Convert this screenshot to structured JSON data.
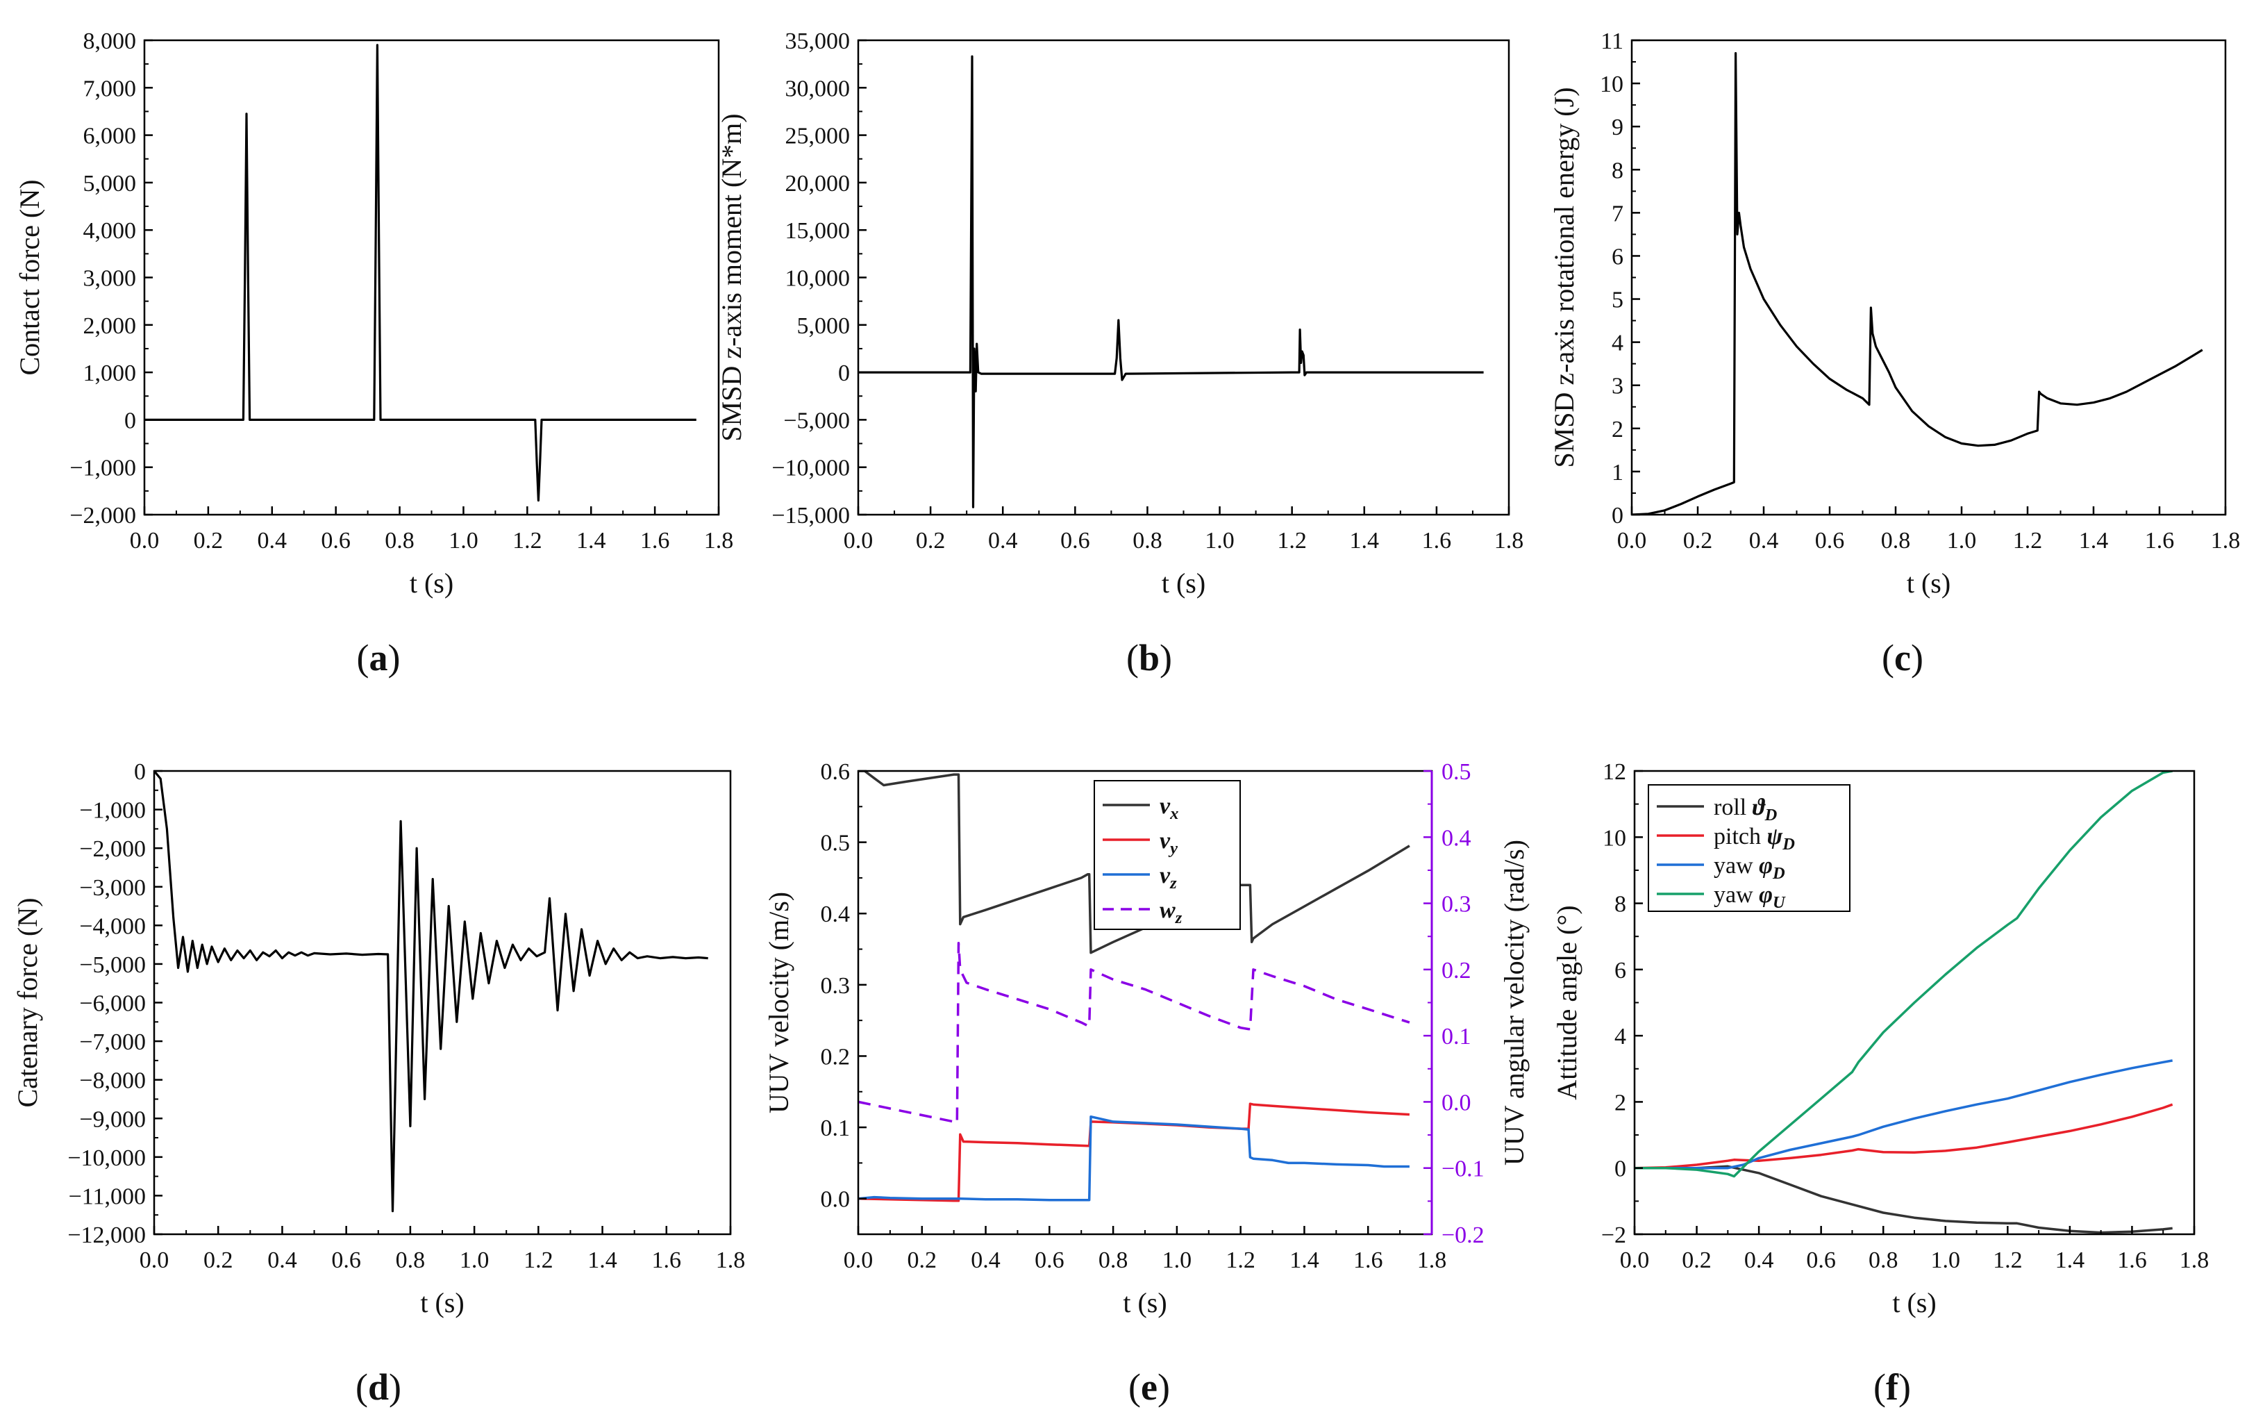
{
  "figure": {
    "panel_labels": [
      "(a)",
      "(b)",
      "(c)",
      "(d)",
      "(e)",
      "(f)"
    ]
  },
  "chart_data": [
    {
      "panel": "(a)",
      "type": "line",
      "xlabel": "t (s)",
      "ylabel": "Contact force (N)",
      "xlim": [
        0.0,
        1.8
      ],
      "ylim": [
        -2000,
        8000
      ],
      "xticks": [
        "0.0",
        "0.2",
        "0.4",
        "0.6",
        "0.8",
        "1.0",
        "1.2",
        "1.4",
        "1.6",
        "1.8"
      ],
      "yticks": [
        "−2,000",
        "−1,000",
        "0",
        "1,000",
        "2,000",
        "3,000",
        "4,000",
        "5,000",
        "6,000",
        "7,000",
        "8,000"
      ],
      "series": [
        {
          "color": "#000000",
          "dashed": false,
          "x": [
            0.0,
            0.31,
            0.315,
            0.32,
            0.325,
            0.33,
            0.72,
            0.725,
            0.73,
            0.735,
            0.74,
            1.225,
            1.23,
            1.235,
            1.24,
            1.245,
            1.73
          ],
          "y": [
            0,
            0,
            3000,
            6450,
            3000,
            0,
            0,
            3800,
            7900,
            3800,
            0,
            0,
            -900,
            -1700,
            -900,
            0,
            0
          ]
        }
      ]
    },
    {
      "panel": "(b)",
      "type": "line",
      "xlabel": "t (s)",
      "ylabel": "SMSD  z-axis moment (N*m)",
      "xlim": [
        0.0,
        1.8
      ],
      "ylim": [
        -15000,
        35000
      ],
      "xticks": [
        "0.0",
        "0.2",
        "0.4",
        "0.6",
        "0.8",
        "1.0",
        "1.2",
        "1.4",
        "1.6",
        "1.8"
      ],
      "yticks": [
        "−15,000",
        "−10,000",
        "−5,000",
        "0",
        "5,000",
        "10,000",
        "15,000",
        "20,000",
        "25,000",
        "30,000",
        "35,000"
      ],
      "series": [
        {
          "color": "#000000",
          "dashed": false,
          "x": [
            0.0,
            0.3,
            0.31,
            0.315,
            0.318,
            0.321,
            0.325,
            0.328,
            0.332,
            0.34,
            0.71,
            0.715,
            0.72,
            0.725,
            0.73,
            0.74,
            1.2,
            1.22,
            1.222,
            1.225,
            1.228,
            1.232,
            1.235,
            1.24,
            1.73
          ],
          "y": [
            0,
            0,
            0,
            33300,
            -14200,
            2500,
            -2000,
            3000,
            0,
            -150,
            -150,
            1500,
            5500,
            1500,
            -800,
            -150,
            0,
            0,
            4500,
            1000,
            2200,
            1800,
            -300,
            0,
            0
          ]
        }
      ]
    },
    {
      "panel": "(c)",
      "type": "line",
      "xlabel": "t (s)",
      "ylabel": "SMSD  z-axis rotational energy (J)",
      "xlim": [
        0.0,
        1.8
      ],
      "ylim": [
        0,
        11
      ],
      "xticks": [
        "0.0",
        "0.2",
        "0.4",
        "0.6",
        "0.8",
        "1.0",
        "1.2",
        "1.4",
        "1.6",
        "1.8"
      ],
      "yticks": [
        "0",
        "1",
        "2",
        "3",
        "4",
        "5",
        "6",
        "7",
        "8",
        "9",
        "10",
        "11"
      ],
      "series": [
        {
          "color": "#000000",
          "dashed": false,
          "x": [
            0.0,
            0.05,
            0.1,
            0.15,
            0.2,
            0.25,
            0.3,
            0.31,
            0.315,
            0.32,
            0.325,
            0.33,
            0.34,
            0.36,
            0.4,
            0.45,
            0.5,
            0.55,
            0.6,
            0.65,
            0.7,
            0.72,
            0.725,
            0.73,
            0.74,
            0.76,
            0.78,
            0.8,
            0.85,
            0.9,
            0.95,
            1.0,
            1.05,
            1.1,
            1.15,
            1.2,
            1.23,
            1.235,
            1.24,
            1.26,
            1.3,
            1.35,
            1.4,
            1.45,
            1.5,
            1.55,
            1.6,
            1.65,
            1.7,
            1.73
          ],
          "y": [
            0,
            0.02,
            0.1,
            0.25,
            0.42,
            0.58,
            0.72,
            0.75,
            10.7,
            6.5,
            7.0,
            6.7,
            6.2,
            5.7,
            5.0,
            4.4,
            3.9,
            3.5,
            3.15,
            2.9,
            2.7,
            2.55,
            4.8,
            4.2,
            3.9,
            3.6,
            3.3,
            2.95,
            2.4,
            2.05,
            1.8,
            1.65,
            1.6,
            1.62,
            1.72,
            1.88,
            1.95,
            2.85,
            2.8,
            2.7,
            2.58,
            2.55,
            2.6,
            2.7,
            2.85,
            3.05,
            3.25,
            3.45,
            3.68,
            3.82
          ]
        }
      ]
    },
    {
      "panel": "(d)",
      "type": "line",
      "xlabel": "t (s)",
      "ylabel": "Catenary force (N)",
      "xlim": [
        0.0,
        1.8
      ],
      "ylim": [
        -12000,
        0
      ],
      "xticks": [
        "0.0",
        "0.2",
        "0.4",
        "0.6",
        "0.8",
        "1.0",
        "1.2",
        "1.4",
        "1.6",
        "1.8"
      ],
      "yticks": [
        "−12,000",
        "−11,000",
        "−10,000",
        "−9,000",
        "−8,000",
        "−7,000",
        "−6,000",
        "−5,000",
        "−4,000",
        "−3,000",
        "−2,000",
        "−1,000",
        "0"
      ],
      "series": [
        {
          "color": "#000000",
          "dashed": false,
          "x": [
            0.0,
            0.02,
            0.04,
            0.06,
            0.075,
            0.09,
            0.105,
            0.12,
            0.135,
            0.15,
            0.165,
            0.18,
            0.2,
            0.22,
            0.24,
            0.26,
            0.28,
            0.3,
            0.32,
            0.34,
            0.36,
            0.38,
            0.4,
            0.42,
            0.44,
            0.46,
            0.48,
            0.5,
            0.55,
            0.6,
            0.65,
            0.7,
            0.73,
            0.745,
            0.77,
            0.8,
            0.82,
            0.845,
            0.87,
            0.895,
            0.92,
            0.945,
            0.97,
            0.995,
            1.02,
            1.045,
            1.07,
            1.095,
            1.12,
            1.145,
            1.17,
            1.195,
            1.22,
            1.235,
            1.26,
            1.285,
            1.31,
            1.335,
            1.36,
            1.385,
            1.41,
            1.435,
            1.46,
            1.485,
            1.51,
            1.54,
            1.58,
            1.62,
            1.66,
            1.7,
            1.73
          ],
          "y": [
            0,
            -200,
            -1500,
            -3800,
            -5100,
            -4300,
            -5200,
            -4400,
            -5100,
            -4500,
            -5000,
            -4550,
            -4950,
            -4600,
            -4900,
            -4650,
            -4850,
            -4650,
            -4900,
            -4700,
            -4800,
            -4650,
            -4850,
            -4700,
            -4780,
            -4700,
            -4780,
            -4720,
            -4750,
            -4730,
            -4760,
            -4740,
            -4750,
            -11400,
            -1300,
            -9200,
            -2000,
            -8500,
            -2800,
            -7200,
            -3500,
            -6500,
            -3900,
            -5900,
            -4200,
            -5500,
            -4400,
            -5100,
            -4500,
            -4900,
            -4600,
            -4800,
            -4700,
            -3300,
            -6200,
            -3700,
            -5700,
            -4100,
            -5300,
            -4400,
            -5000,
            -4600,
            -4900,
            -4700,
            -4850,
            -4800,
            -4850,
            -4820,
            -4850,
            -4830,
            -4850
          ]
        }
      ]
    },
    {
      "panel": "(e)",
      "type": "line",
      "xlabel": "t (s)",
      "ylabel": "UUV velocity (m/s)",
      "y2label": "UUV angular velocity (rad/s)",
      "xlim": [
        0.0,
        1.8
      ],
      "ylim": [
        -0.05,
        0.6
      ],
      "y2lim": [
        -0.2,
        0.5
      ],
      "xticks": [
        "0.0",
        "0.2",
        "0.4",
        "0.6",
        "0.8",
        "1.0",
        "1.2",
        "1.4",
        "1.6",
        "1.8"
      ],
      "yticks": [
        "0.0",
        "0.1",
        "0.2",
        "0.3",
        "0.4",
        "0.5",
        "0.6"
      ],
      "y2ticks": [
        "−0.2",
        "−0.1",
        "0.0",
        "0.1",
        "0.2",
        "0.3",
        "0.4",
        "0.5"
      ],
      "axis_color_right": "#8a00e6",
      "legend_position": "top-center",
      "series": [
        {
          "name": "v_x",
          "color": "#333333",
          "dashed": false,
          "axis": "left",
          "x": [
            0.0,
            0.02,
            0.05,
            0.08,
            0.15,
            0.3,
            0.315,
            0.32,
            0.33,
            0.4,
            0.5,
            0.6,
            0.7,
            0.72,
            0.725,
            0.73,
            0.8,
            0.9,
            1.0,
            1.1,
            1.2,
            1.225,
            1.23,
            1.235,
            1.24,
            1.3,
            1.4,
            1.5,
            1.6,
            1.73
          ],
          "y": [
            0.6,
            0.6,
            0.59,
            0.58,
            0.585,
            0.595,
            0.595,
            0.385,
            0.395,
            0.405,
            0.42,
            0.435,
            0.45,
            0.455,
            0.455,
            0.345,
            0.36,
            0.38,
            0.4,
            0.42,
            0.44,
            0.44,
            0.44,
            0.36,
            0.365,
            0.385,
            0.41,
            0.435,
            0.46,
            0.495
          ]
        },
        {
          "name": "v_y",
          "color": "#e8202a",
          "dashed": false,
          "axis": "left",
          "x": [
            0.0,
            0.1,
            0.2,
            0.3,
            0.315,
            0.32,
            0.33,
            0.4,
            0.5,
            0.6,
            0.72,
            0.725,
            0.73,
            0.8,
            0.9,
            1.0,
            1.1,
            1.2,
            1.225,
            1.23,
            1.24,
            1.3,
            1.4,
            1.5,
            1.6,
            1.73
          ],
          "y": [
            0.0,
            -0.001,
            -0.002,
            -0.003,
            -0.003,
            0.09,
            0.08,
            0.079,
            0.078,
            0.076,
            0.074,
            0.074,
            0.108,
            0.107,
            0.105,
            0.103,
            0.1,
            0.098,
            0.098,
            0.133,
            0.132,
            0.13,
            0.127,
            0.124,
            0.121,
            0.118
          ]
        },
        {
          "name": "v_z",
          "color": "#1f6fd6",
          "dashed": false,
          "axis": "left",
          "x": [
            0.0,
            0.05,
            0.1,
            0.2,
            0.3,
            0.32,
            0.4,
            0.5,
            0.6,
            0.72,
            0.725,
            0.73,
            0.8,
            0.9,
            1.0,
            1.1,
            1.2,
            1.225,
            1.23,
            1.24,
            1.3,
            1.35,
            1.4,
            1.5,
            1.6,
            1.65,
            1.73
          ],
          "y": [
            0.0,
            0.002,
            0.001,
            0.0,
            0.0,
            0.0,
            -0.001,
            -0.001,
            -0.002,
            -0.002,
            -0.002,
            0.115,
            0.108,
            0.106,
            0.104,
            0.101,
            0.098,
            0.097,
            0.058,
            0.056,
            0.054,
            0.05,
            0.05,
            0.048,
            0.047,
            0.045,
            0.045
          ]
        },
        {
          "name": "w_z",
          "color": "#8a00e6",
          "dashed": true,
          "axis": "right",
          "x": [
            0.0,
            0.1,
            0.2,
            0.3,
            0.31,
            0.315,
            0.32,
            0.34,
            0.4,
            0.5,
            0.6,
            0.7,
            0.72,
            0.725,
            0.73,
            0.8,
            0.9,
            1.0,
            1.1,
            1.2,
            1.225,
            1.23,
            1.24,
            1.3,
            1.4,
            1.5,
            1.6,
            1.73
          ],
          "y": [
            0.0,
            -0.01,
            -0.02,
            -0.03,
            -0.032,
            0.24,
            0.2,
            0.18,
            0.17,
            0.155,
            0.14,
            0.12,
            0.115,
            0.115,
            0.2,
            0.185,
            0.17,
            0.15,
            0.13,
            0.112,
            0.11,
            0.11,
            0.2,
            0.19,
            0.175,
            0.155,
            0.14,
            0.12
          ]
        }
      ],
      "legend_entries": [
        "v_x",
        "v_y",
        "v_z",
        "w_z"
      ]
    },
    {
      "panel": "(f)",
      "type": "line",
      "xlabel": "t (s)",
      "ylabel": "Attitude angle (°)",
      "xlim": [
        0.0,
        1.8
      ],
      "ylim": [
        -2,
        12
      ],
      "xticks": [
        "0.0",
        "0.2",
        "0.4",
        "0.6",
        "0.8",
        "1.0",
        "1.2",
        "1.4",
        "1.6",
        "1.8"
      ],
      "yticks": [
        "−2",
        "0",
        "2",
        "4",
        "6",
        "8",
        "10",
        "12"
      ],
      "legend_position": "top-left",
      "series": [
        {
          "name": "roll ϑ_D",
          "color": "#333333",
          "dashed": false,
          "x": [
            0.0,
            0.1,
            0.2,
            0.3,
            0.4,
            0.5,
            0.6,
            0.7,
            0.8,
            0.9,
            1.0,
            1.1,
            1.2,
            1.23,
            1.3,
            1.4,
            1.5,
            1.6,
            1.7,
            1.73
          ],
          "y": [
            0.0,
            0.0,
            0.0,
            0.05,
            -0.15,
            -0.5,
            -0.85,
            -1.1,
            -1.35,
            -1.5,
            -1.6,
            -1.65,
            -1.67,
            -1.67,
            -1.8,
            -1.9,
            -1.95,
            -1.92,
            -1.85,
            -1.82
          ]
        },
        {
          "name": "pitch ψ_D",
          "color": "#e8202a",
          "dashed": false,
          "x": [
            0.0,
            0.1,
            0.2,
            0.3,
            0.32,
            0.4,
            0.5,
            0.6,
            0.7,
            0.72,
            0.8,
            0.9,
            1.0,
            1.1,
            1.2,
            1.3,
            1.4,
            1.5,
            1.6,
            1.7,
            1.73
          ],
          "y": [
            0.0,
            0.02,
            0.1,
            0.22,
            0.25,
            0.22,
            0.3,
            0.4,
            0.53,
            0.57,
            0.48,
            0.47,
            0.52,
            0.62,
            0.78,
            0.95,
            1.12,
            1.32,
            1.55,
            1.82,
            1.92
          ]
        },
        {
          "name": "yaw φ_D",
          "color": "#1f6fd6",
          "dashed": false,
          "x": [
            0.0,
            0.1,
            0.2,
            0.3,
            0.35,
            0.4,
            0.5,
            0.6,
            0.7,
            0.72,
            0.8,
            0.9,
            1.0,
            1.1,
            1.2,
            1.3,
            1.4,
            1.5,
            1.6,
            1.7,
            1.73
          ],
          "y": [
            0.0,
            0.0,
            0.0,
            0.0,
            0.1,
            0.3,
            0.55,
            0.75,
            0.95,
            1.0,
            1.25,
            1.5,
            1.72,
            1.92,
            2.1,
            2.35,
            2.6,
            2.82,
            3.02,
            3.2,
            3.25
          ]
        },
        {
          "name": "yaw φ_U",
          "color": "#17a06a",
          "dashed": false,
          "x": [
            0.0,
            0.1,
            0.2,
            0.3,
            0.32,
            0.4,
            0.5,
            0.6,
            0.7,
            0.72,
            0.8,
            0.9,
            1.0,
            1.1,
            1.2,
            1.23,
            1.3,
            1.4,
            1.5,
            1.6,
            1.7,
            1.73
          ],
          "y": [
            0.0,
            0.0,
            -0.05,
            -0.18,
            -0.25,
            0.5,
            1.3,
            2.1,
            2.9,
            3.2,
            4.1,
            5.0,
            5.85,
            6.65,
            7.35,
            7.55,
            8.45,
            9.6,
            10.6,
            11.4,
            11.95,
            12.0
          ]
        }
      ],
      "legend_entries": [
        "roll ϑ_D",
        "pitch ψ_D",
        "yaw φ_D",
        "yaw φ_U"
      ]
    }
  ]
}
